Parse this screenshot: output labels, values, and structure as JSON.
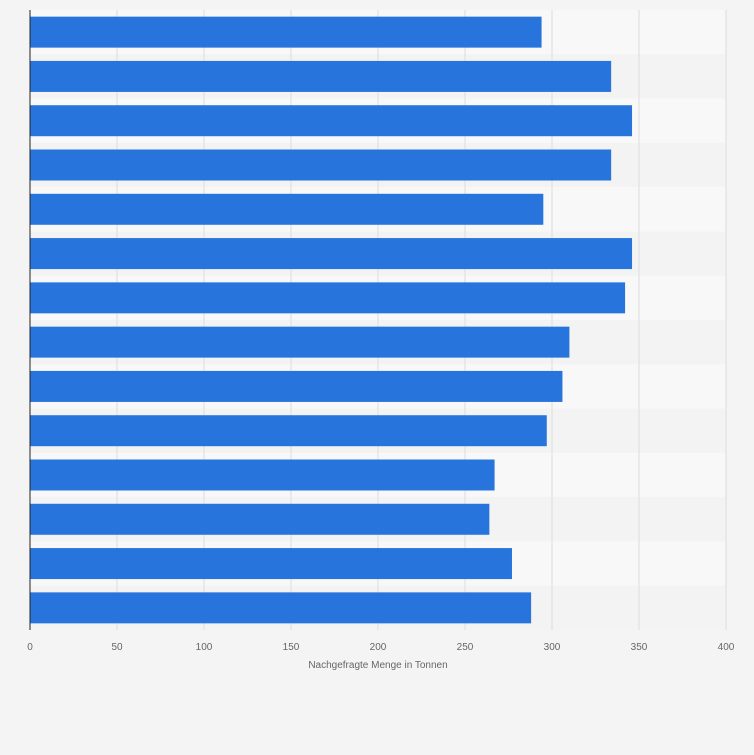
{
  "chart_data": {
    "type": "bar",
    "orientation": "horizontal",
    "categories": [
      "",
      "",
      "",
      "",
      "",
      "",
      "",
      "",
      "",
      "",
      "",
      "",
      "",
      ""
    ],
    "values": [
      294,
      334,
      346,
      334,
      295,
      346,
      342,
      310,
      306,
      297,
      267,
      264,
      277,
      288
    ],
    "xlabel": "Nachgefragte Menge in Tonnen",
    "ylabel": "",
    "xlim": [
      0,
      400
    ],
    "xticks": [
      0,
      50,
      100,
      150,
      200,
      250,
      300,
      350,
      400
    ],
    "grid": true,
    "colors": {
      "bar": "#2775dc",
      "band_light": "#f8f8f8",
      "band_dark": "#f3f3f3",
      "grid": "#dddddd",
      "axis": "#222222",
      "tick_text": "#666666",
      "page_bg": "#f4f4f4"
    }
  }
}
